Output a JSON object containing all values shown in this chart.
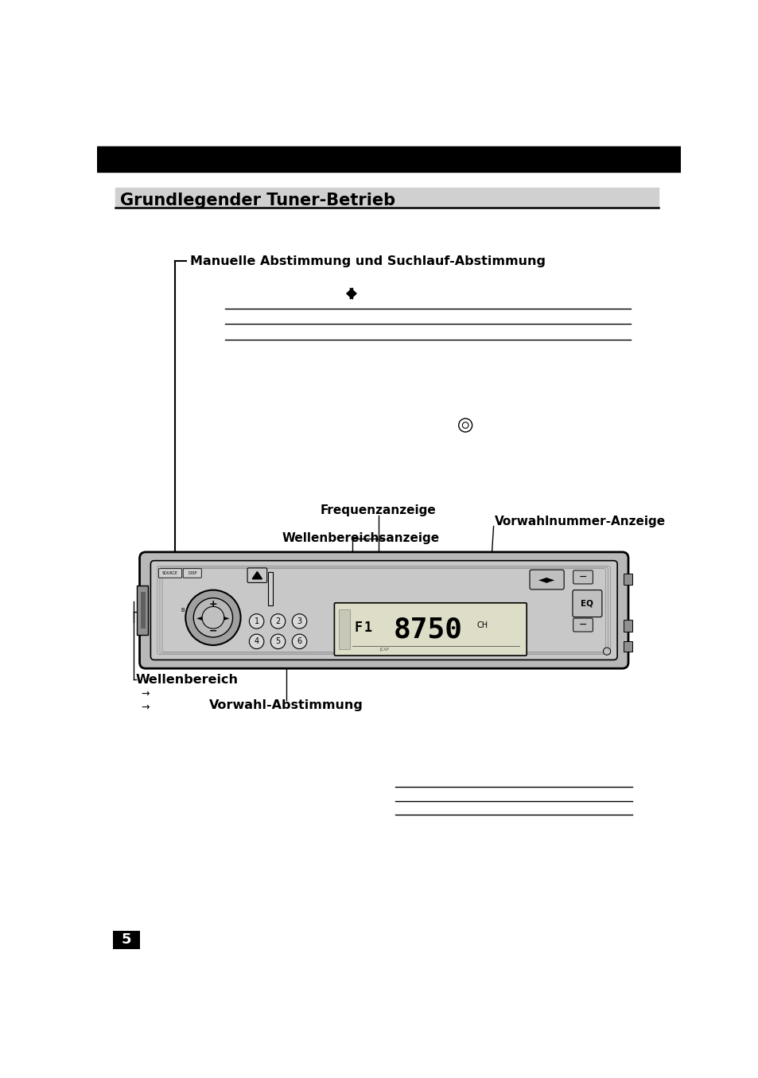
{
  "title": "Grundlegender Tuner-Betrieb",
  "section1_label": "Manuelle Abstimmung und Suchlauf-Abstimmung",
  "label_frequenz": "Frequenzanzeige",
  "label_vorwahl_num": "Vorwahlnummer-Anzeige",
  "label_wellenbereich_anz": "Wellenbereichsanzeige",
  "label_wellenbereich": "Wellenbereich",
  "label_vorwahl": "Vorwahl-Abstimmung",
  "page_number": "5",
  "bg_color": "#ffffff",
  "header_bg": "#000000",
  "title_bg": "#d0d0d0",
  "device_outer_bg": "#b8b8b8",
  "device_inner_bg": "#c8c8c8",
  "display_bg": "#ddddc8"
}
